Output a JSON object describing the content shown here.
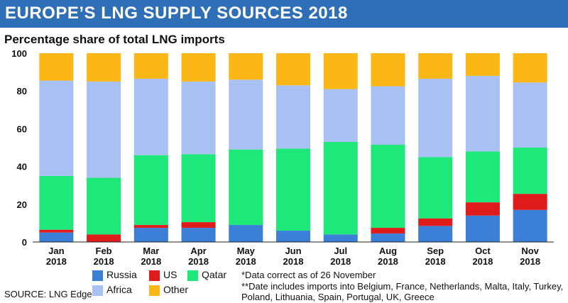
{
  "header": {
    "title": "EUROPE’S LNG SUPPLY SOURCES 2018",
    "subtitle": "Percentage share of total LNG imports"
  },
  "chart_data": {
    "type": "bar",
    "stacked": true,
    "title": "EUROPE’S LNG SUPPLY SOURCES 2018",
    "subtitle": "Percentage share of total LNG imports",
    "categories": [
      "Jan",
      "Feb",
      "Mar",
      "Apr",
      "May",
      "Jun",
      "Jul",
      "Aug",
      "Sep",
      "Oct",
      "Nov"
    ],
    "category_year": "2018",
    "ylim": [
      0,
      100
    ],
    "yticks": [
      0,
      20,
      40,
      60,
      80,
      100
    ],
    "grid": false,
    "legend_position": "bottom-left",
    "series": [
      {
        "name": "Russia",
        "color": "#3b7fd6",
        "values": [
          5,
          0,
          7.5,
          7.5,
          9,
          6,
          4,
          4.5,
          8.5,
          14,
          17
        ]
      },
      {
        "name": "US",
        "color": "#e01b1b",
        "values": [
          1.5,
          4,
          1.5,
          3,
          0,
          0,
          0,
          3,
          4,
          7,
          8.5
        ]
      },
      {
        "name": "Qatar",
        "color": "#1ee87a",
        "values": [
          28.5,
          30,
          37,
          36,
          40,
          43.5,
          49,
          44,
          32.5,
          27,
          24.5
        ]
      },
      {
        "name": "Africa",
        "color": "#a9c1f2",
        "values": [
          50.5,
          51,
          40.5,
          38.5,
          37,
          33.5,
          28,
          31,
          41.5,
          40,
          34.5
        ]
      },
      {
        "name": "Other",
        "color": "#fbb715",
        "values": [
          14.5,
          15,
          13.5,
          15,
          14,
          17,
          19,
          17.5,
          13.5,
          12,
          15.5
        ]
      }
    ]
  },
  "legend": {
    "items": [
      {
        "label": "Russia",
        "color": "#3b7fd6"
      },
      {
        "label": "US",
        "color": "#e01b1b"
      },
      {
        "label": "Qatar",
        "color": "#1ee87a"
      },
      {
        "label": "Africa",
        "color": "#a9c1f2"
      },
      {
        "label": "Other",
        "color": "#fbb715"
      }
    ]
  },
  "notes": {
    "note1": "*Data correct as of 26 November",
    "note2": "**Date includes imports into Belgium, France, Netherlands, Malta, Italy, Turkey,",
    "note3": "Poland, Lithuania, Spain, Portugal, UK, Greece"
  },
  "footer": {
    "source": "SOURCE: LNG Edge"
  },
  "colors": {
    "title_bar": "#2f6fb7",
    "plot_background": "#ffffff"
  }
}
